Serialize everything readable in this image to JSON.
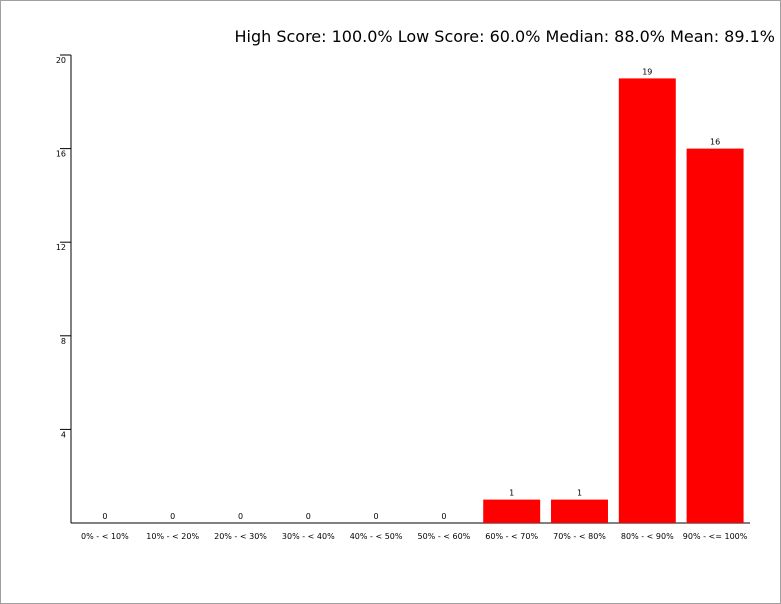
{
  "chart_data": {
    "type": "bar",
    "title": "High Score: 100.0%  Low Score: 60.0%  Median: 88.0%  Mean: 89.1%",
    "categories": [
      "0% - < 10%",
      "10% - < 20%",
      "20% - < 30%",
      "30% - < 40%",
      "40% - < 50%",
      "50% - < 60%",
      "60% - < 70%",
      "70% - < 80%",
      "80% - < 90%",
      "90% - <= 100%"
    ],
    "values": [
      0,
      0,
      0,
      0,
      0,
      0,
      1,
      1,
      19,
      16
    ],
    "color": "#ff0000",
    "ylim": [
      0,
      20
    ],
    "yticks": [
      4,
      8,
      12,
      16,
      20
    ],
    "grid": false
  }
}
